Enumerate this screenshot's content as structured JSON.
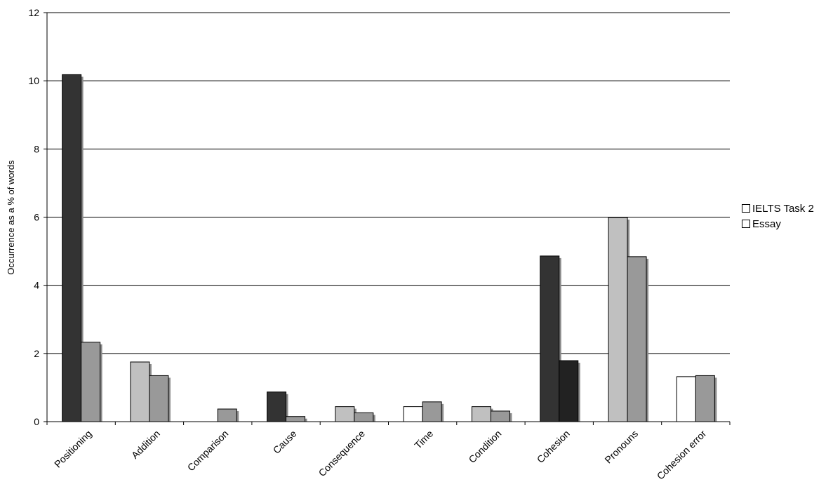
{
  "chart_data": {
    "type": "bar",
    "title": "",
    "xlabel": "",
    "ylabel": "Occurrence as a % of words",
    "ylim": [
      0,
      12
    ],
    "yticks": [
      0,
      2,
      4,
      6,
      8,
      10,
      12
    ],
    "grid": true,
    "legend_position": "right",
    "categories": [
      "Positioning",
      "Addition",
      "Comparison",
      "Cause",
      "Consequence",
      "Time",
      "Condition",
      "Cohesion",
      "Pronouns",
      "Cohesion error"
    ],
    "groups": [
      {
        "category": "Positioning",
        "bars": [
          {
            "value": 10.18,
            "color": "#333333"
          },
          {
            "value": 2.33,
            "color": "#999999"
          }
        ]
      },
      {
        "category": "Addition",
        "bars": [
          {
            "value": 1.75,
            "color": "#c0c0c0"
          },
          {
            "value": 1.35,
            "color": "#999999"
          }
        ]
      },
      {
        "category": "Comparison",
        "bars": [
          {
            "value": 0.0,
            "color": "#ffffff"
          },
          {
            "value": 0.37,
            "color": "#999999"
          }
        ]
      },
      {
        "category": "Cause",
        "bars": [
          {
            "value": 0.87,
            "color": "#333333"
          },
          {
            "value": 0.15,
            "color": "#999999"
          }
        ]
      },
      {
        "category": "Consequence",
        "bars": [
          {
            "value": 0.44,
            "color": "#c0c0c0"
          },
          {
            "value": 0.26,
            "color": "#999999"
          }
        ]
      },
      {
        "category": "Time",
        "bars": [
          {
            "value": 0.44,
            "color": "#ffffff"
          },
          {
            "value": 0.58,
            "color": "#999999"
          }
        ]
      },
      {
        "category": "Condition",
        "bars": [
          {
            "value": 0.44,
            "color": "#c0c0c0"
          },
          {
            "value": 0.31,
            "color": "#999999"
          }
        ]
      },
      {
        "category": "Cohesion",
        "bars": [
          {
            "value": 4.86,
            "color": "#333333"
          },
          {
            "value": 1.79,
            "color": "#222222"
          }
        ]
      },
      {
        "category": "Pronouns",
        "bars": [
          {
            "value": 5.99,
            "color": "#c0c0c0"
          },
          {
            "value": 4.84,
            "color": "#999999"
          }
        ]
      },
      {
        "category": "Cohesion error",
        "bars": [
          {
            "value": 1.32,
            "color": "#ffffff"
          },
          {
            "value": 1.35,
            "color": "#999999"
          }
        ]
      }
    ],
    "series": [
      {
        "name": "IELTS Task 2",
        "values": [
          10.18,
          1.75,
          0.0,
          0.87,
          0.44,
          0.44,
          0.44,
          4.86,
          5.99,
          1.32
        ]
      },
      {
        "name": "Essay",
        "values": [
          2.33,
          1.35,
          0.37,
          0.15,
          0.26,
          0.58,
          0.31,
          1.79,
          4.84,
          1.35
        ]
      }
    ],
    "legend": [
      "IELTS Task 2",
      "Essay"
    ]
  }
}
